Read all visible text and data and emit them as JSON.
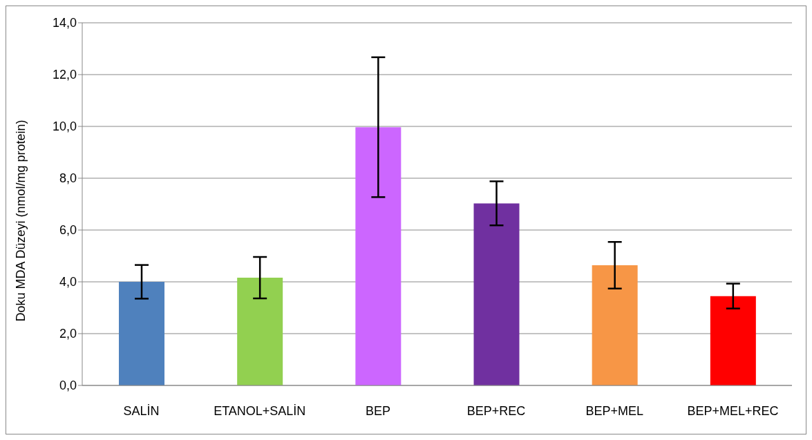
{
  "chart_data": {
    "type": "bar",
    "ylabel": "Doku MDA Düzeyi (nmol/mg protein)",
    "categories": [
      "SALİN",
      "ETANOL+SALİN",
      "BEP",
      "BEP+REC",
      "BEP+MEL",
      "BEP+MEL+REC"
    ],
    "values": [
      4.0,
      4.16,
      9.97,
      7.03,
      4.64,
      3.45
    ],
    "errors": [
      0.65,
      0.8,
      2.7,
      0.85,
      0.9,
      0.48
    ],
    "colors": [
      "#4f81bd",
      "#92d050",
      "#cc66ff",
      "#7030a0",
      "#f79646",
      "#ff0000"
    ],
    "ylim": [
      0,
      14
    ],
    "yticks": [
      {
        "value": 0,
        "label": "0,0"
      },
      {
        "value": 2,
        "label": "2,0"
      },
      {
        "value": 4,
        "label": "4,0"
      },
      {
        "value": 6,
        "label": "6,0"
      },
      {
        "value": 8,
        "label": "8,0"
      },
      {
        "value": 10,
        "label": "10,0"
      },
      {
        "value": 12,
        "label": "12,0"
      },
      {
        "value": 14,
        "label": "14,0"
      }
    ],
    "grid": "y"
  }
}
